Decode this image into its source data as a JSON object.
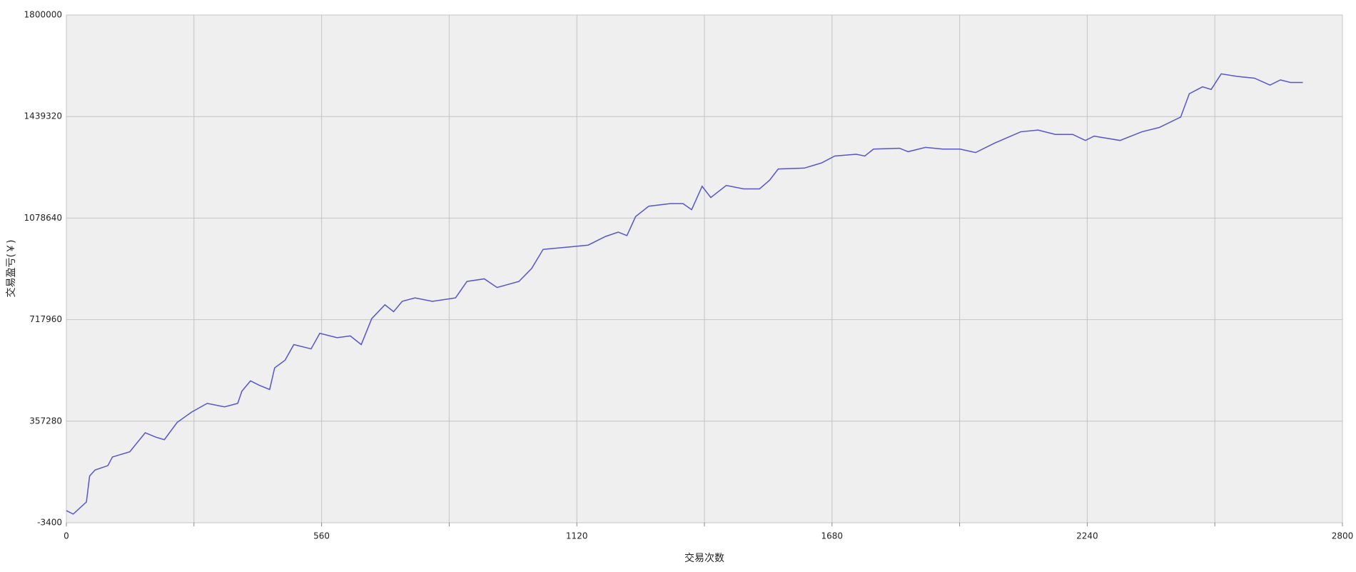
{
  "chart_data": {
    "type": "line",
    "xlabel": "交易次数",
    "ylabel": "交易盈亏(￥)",
    "color": "#5555cc",
    "grid": true,
    "xlim": [
      0,
      2800
    ],
    "xticks": [
      0,
      560,
      1120,
      1680,
      2240,
      2800
    ],
    "xminor_ticks": [
      280,
      840,
      1400,
      1960,
      2520
    ],
    "ylim": [
      -3400,
      1800000
    ],
    "yticks": [
      -3400,
      357280,
      717960,
      1078640,
      1439320,
      1800000
    ],
    "x": [
      0,
      15,
      44,
      51,
      63,
      91,
      101,
      139,
      173,
      196,
      215,
      243,
      275,
      309,
      347,
      376,
      385,
      404,
      423,
      446,
      457,
      480,
      499,
      537,
      556,
      594,
      623,
      647,
      670,
      699,
      718,
      737,
      765,
      803,
      854,
      879,
      917,
      945,
      993,
      1021,
      1046,
      1107,
      1145,
      1183,
      1211,
      1230,
      1249,
      1278,
      1325,
      1353,
      1372,
      1395,
      1414,
      1448,
      1486,
      1521,
      1543,
      1562,
      1619,
      1657,
      1686,
      1733,
      1752,
      1771,
      1828,
      1847,
      1885,
      1923,
      1961,
      1995,
      2037,
      2094,
      2132,
      2170,
      2208,
      2236,
      2255,
      2312,
      2360,
      2398,
      2445,
      2464,
      2493,
      2512,
      2534,
      2569,
      2607,
      2641,
      2664,
      2686,
      2713
    ],
    "values": [
      39600,
      27320,
      70330,
      162490,
      183990,
      199350,
      230070,
      248500,
      316090,
      300730,
      291510,
      352950,
      389820,
      420540,
      408250,
      420540,
      463540,
      500410,
      485050,
      469690,
      546490,
      574140,
      629430,
      614070,
      669370,
      654010,
      660150,
      629430,
      721590,
      770740,
      746170,
      783030,
      795320,
      783030,
      795320,
      853690,
      862900,
      832180,
      853690,
      899770,
      967350,
      976570,
      982710,
      1013430,
      1028790,
      1016500,
      1084090,
      1120950,
      1130170,
      1130170,
      1108670,
      1191610,
      1151680,
      1194680,
      1182390,
      1182390,
      1213110,
      1253050,
      1256120,
      1274550,
      1299130,
      1305270,
      1299130,
      1323700,
      1326780,
      1314490,
      1329850,
      1323700,
      1323700,
      1311420,
      1345210,
      1385150,
      1391290,
      1375930,
      1375930,
      1354430,
      1369790,
      1354430,
      1385150,
      1400510,
      1437380,
      1520320,
      1544900,
      1535680,
      1590980,
      1581760,
      1575620,
      1551040,
      1569470,
      1560260,
      1560260
    ]
  }
}
